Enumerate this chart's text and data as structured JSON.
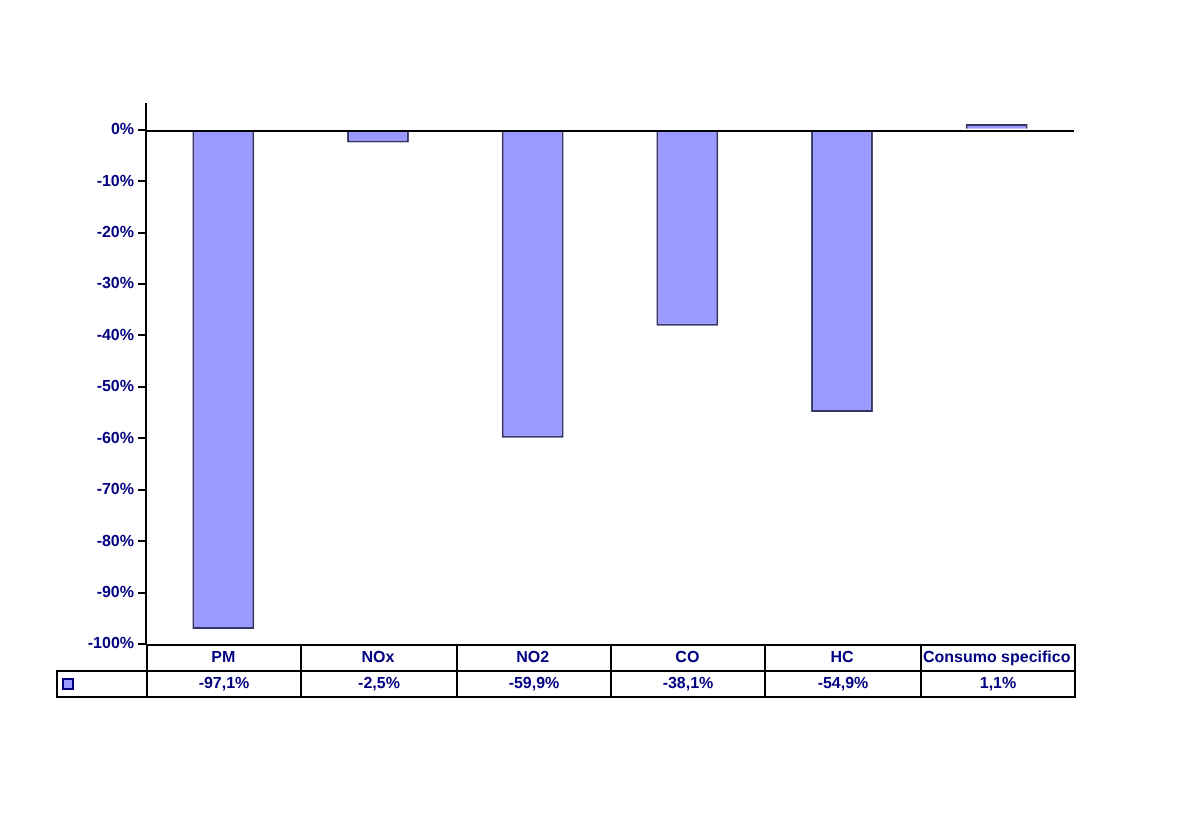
{
  "chart_data": {
    "type": "bar",
    "categories": [
      "PM",
      "NOx",
      "NO2",
      "CO",
      "HC",
      "Consumo specifico"
    ],
    "values": [
      -97.1,
      -2.5,
      -59.9,
      -38.1,
      -54.9,
      1.1
    ],
    "color": "#9999ff",
    "value_labels": [
      "-97,1%",
      "-2,5%",
      "-59,9%",
      "-38,1%",
      "-54,9%",
      "1,1%"
    ],
    "ylim": [
      -100,
      5
    ],
    "yticks": [
      {
        "value": -100,
        "label": "-100%"
      },
      {
        "value": -90,
        "label": "-90%"
      },
      {
        "value": -80,
        "label": "-80%"
      },
      {
        "value": -70,
        "label": "-70%"
      },
      {
        "value": -60,
        "label": "-60%"
      },
      {
        "value": -50,
        "label": "-50%"
      },
      {
        "value": -40,
        "label": "-40%"
      },
      {
        "value": -30,
        "label": "-30%"
      },
      {
        "value": -20,
        "label": "-20%"
      },
      {
        "value": -10,
        "label": "-10%"
      },
      {
        "value": 0,
        "label": "0%"
      }
    ],
    "ref_lines": [
      {
        "axis": "y",
        "value": 0,
        "color": "#000000"
      }
    ],
    "grid": false,
    "legend": false
  }
}
